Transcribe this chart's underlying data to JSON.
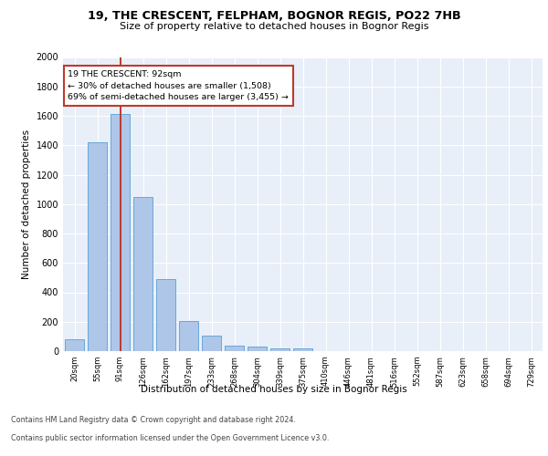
{
  "title1": "19, THE CRESCENT, FELPHAM, BOGNOR REGIS, PO22 7HB",
  "title2": "Size of property relative to detached houses in Bognor Regis",
  "xlabel": "Distribution of detached houses by size in Bognor Regis",
  "ylabel": "Number of detached properties",
  "bin_labels": [
    "20sqm",
    "55sqm",
    "91sqm",
    "126sqm",
    "162sqm",
    "197sqm",
    "233sqm",
    "268sqm",
    "304sqm",
    "339sqm",
    "375sqm",
    "410sqm",
    "446sqm",
    "481sqm",
    "516sqm",
    "552sqm",
    "587sqm",
    "623sqm",
    "658sqm",
    "694sqm",
    "729sqm"
  ],
  "bar_values": [
    80,
    1420,
    1610,
    1050,
    490,
    205,
    105,
    40,
    28,
    20,
    18,
    0,
    0,
    0,
    0,
    0,
    0,
    0,
    0,
    0,
    0
  ],
  "bar_color": "#aec6e8",
  "bar_edge_color": "#5a9fd4",
  "vline_idx": 2,
  "vline_color": "#c0392b",
  "annotation_line1": "19 THE CRESCENT: 92sqm",
  "annotation_line2": "← 30% of detached houses are smaller (1,508)",
  "annotation_line3": "69% of semi-detached houses are larger (3,455) →",
  "annotation_box_color": "#ffffff",
  "annotation_box_edge": "#c0392b",
  "ylim": [
    0,
    2000
  ],
  "yticks": [
    0,
    200,
    400,
    600,
    800,
    1000,
    1200,
    1400,
    1600,
    1800,
    2000
  ],
  "bg_color": "#e8eff9",
  "footer_line1": "Contains HM Land Registry data © Crown copyright and database right 2024.",
  "footer_line2": "Contains public sector information licensed under the Open Government Licence v3.0.",
  "fig_bg": "#ffffff"
}
